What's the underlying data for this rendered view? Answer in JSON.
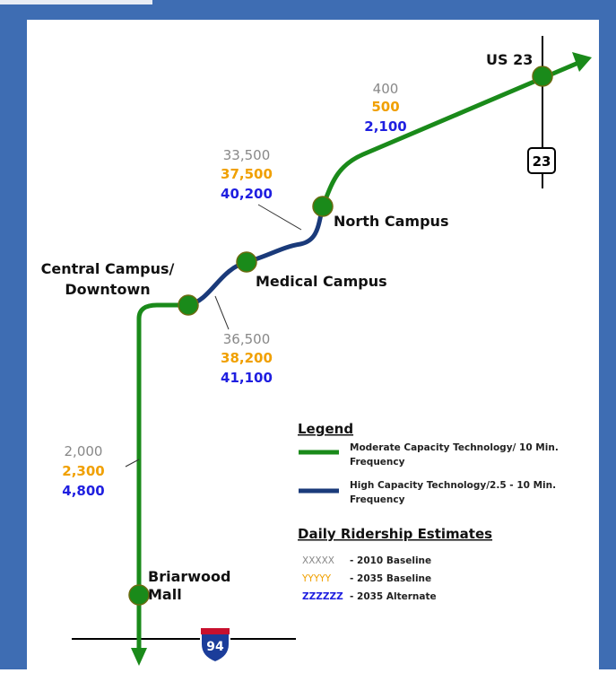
{
  "stations": [
    {
      "label": [
        "Briarwood",
        "Mall"
      ]
    },
    {
      "label": [
        "Central Campus/",
        "Downtown"
      ]
    },
    {
      "label": [
        "Medical Campus"
      ]
    },
    {
      "label": [
        "North Campus"
      ]
    },
    {
      "label": [
        "US 23"
      ]
    }
  ],
  "ridership": [
    {
      "baseline_2010": "2,000",
      "baseline_2035": "2,300",
      "alternate_2035": "4,800"
    },
    {
      "baseline_2010": "36,500",
      "baseline_2035": "38,200",
      "alternate_2035": "41,100"
    },
    {
      "baseline_2010": "33,500",
      "baseline_2035": "37,500",
      "alternate_2035": "40,200"
    },
    {
      "baseline_2010": "400",
      "baseline_2035": "500",
      "alternate_2035": "2,100"
    }
  ],
  "shields": [
    "23",
    "94"
  ],
  "legend": {
    "title": "Legend",
    "items": [
      {
        "label": [
          "Moderate Capacity Technology/ 10 Min.",
          "Frequency"
        ]
      },
      {
        "label": [
          "High Capacity Technology/2.5 - 10 Min.",
          "Frequency"
        ]
      }
    ],
    "ridership_title": "Daily Ridership Estimates",
    "ridership_items": [
      {
        "sample": "XXXXX",
        "label": "- 2010 Baseline"
      },
      {
        "sample": "YYYYY",
        "label": "- 2035 Baseline"
      },
      {
        "sample": "ZZZZZZ",
        "label": "- 2035 Alternate"
      }
    ]
  }
}
